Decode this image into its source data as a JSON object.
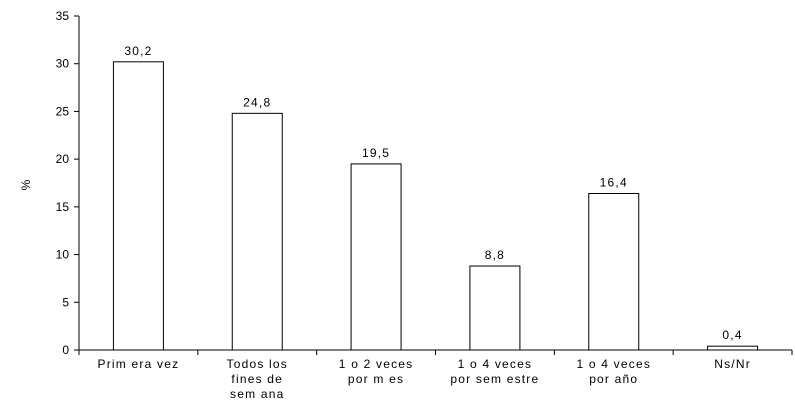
{
  "chart_data": {
    "type": "bar",
    "title": "",
    "xlabel": "",
    "ylabel": "%",
    "ylim": [
      0,
      35
    ],
    "yticks": [
      0,
      5,
      10,
      15,
      20,
      25,
      30,
      35
    ],
    "grid": false,
    "categories": [
      [
        "Prim era vez"
      ],
      [
        "Todos los",
        "fines de",
        "sem ana"
      ],
      [
        "1 o 2 veces",
        "por m es"
      ],
      [
        "1 o 4 veces",
        "por sem estre"
      ],
      [
        "1 o 4 veces",
        "por año"
      ],
      [
        "Ns/Nr"
      ]
    ],
    "values": [
      30.2,
      24.8,
      19.5,
      8.8,
      16.4,
      0.4
    ],
    "data_labels": [
      "30,2",
      "24,8",
      "19,5",
      "8,8",
      "16,4",
      "0,4"
    ],
    "colors": {
      "bar_fill": "#ffffff",
      "bar_stroke": "#000000",
      "axis": "#000000"
    }
  }
}
